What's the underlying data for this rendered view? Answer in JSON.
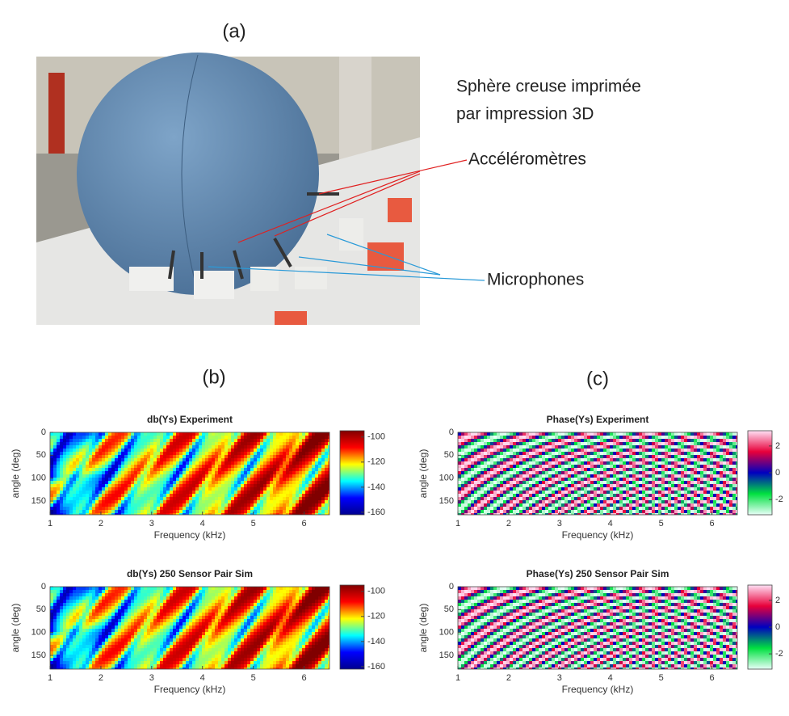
{
  "figure": {
    "panel_labels": [
      "(a)",
      "(b)",
      "(c)"
    ],
    "annotations": [
      "Sphère creuse imprimée",
      "par impression 3D",
      "Accéléromètres",
      "Microphones"
    ]
  },
  "chart_data": [
    {
      "type": "heatmap",
      "title": "db(Ys) Experiment",
      "x_label": "Frequency (kHz)",
      "y_label": "angle (deg)",
      "xlim": [
        1,
        6.5
      ],
      "xticks": [
        1,
        2,
        3,
        4,
        5,
        6
      ],
      "ylim": [
        0,
        180
      ],
      "yticks": [
        0,
        50,
        100,
        150
      ],
      "y_reversed": true,
      "colorbar": {
        "clim": [
          -162,
          -95
        ],
        "ticks": [
          -100,
          -120,
          -140,
          -160
        ],
        "colormap": [
          "#00008f",
          "#0000ff",
          "#00ffff",
          "#ffff00",
          "#ff0000",
          "#800000"
        ]
      }
    },
    {
      "type": "heatmap",
      "title": "db(Ys) 250 Sensor Pair Sim",
      "x_label": "Frequency (kHz)",
      "y_label": "angle (deg)",
      "xlim": [
        1,
        6.5
      ],
      "xticks": [
        1,
        2,
        3,
        4,
        5,
        6
      ],
      "ylim": [
        0,
        180
      ],
      "yticks": [
        0,
        50,
        100,
        150
      ],
      "y_reversed": true,
      "colorbar": {
        "clim": [
          -162,
          -95
        ],
        "ticks": [
          -100,
          -120,
          -140,
          -160
        ],
        "colormap": [
          "#00008f",
          "#0000ff",
          "#00ffff",
          "#ffff00",
          "#ff0000",
          "#800000"
        ]
      }
    },
    {
      "type": "heatmap",
      "title": "Phase(Ys) Experiment",
      "x_label": "Frequency (kHz)",
      "y_label": "angle (deg)",
      "xlim": [
        1,
        6.5
      ],
      "xticks": [
        1,
        2,
        3,
        4,
        5,
        6
      ],
      "ylim": [
        0,
        180
      ],
      "yticks": [
        0,
        50,
        100,
        150
      ],
      "y_reversed": true,
      "colorbar": {
        "clim": [
          -3.14,
          3.14
        ],
        "ticks": [
          2,
          0,
          -2
        ],
        "colormap": [
          "#e8fff8",
          "#00e040",
          "#0000c0",
          "#e8003a",
          "#ffe0f4"
        ]
      }
    },
    {
      "type": "heatmap",
      "title": "Phase(Ys) 250 Sensor Pair Sim",
      "x_label": "Frequency (kHz)",
      "y_label": "angle (deg)",
      "xlim": [
        1,
        6.5
      ],
      "xticks": [
        1,
        2,
        3,
        4,
        5,
        6
      ],
      "ylim": [
        0,
        180
      ],
      "yticks": [
        0,
        50,
        100,
        150
      ],
      "y_reversed": true,
      "colorbar": {
        "clim": [
          -3.14,
          3.14
        ],
        "ticks": [
          2,
          0,
          -2
        ],
        "colormap": [
          "#e8fff8",
          "#00e040",
          "#0000c0",
          "#e8003a",
          "#ffe0f4"
        ]
      }
    }
  ]
}
